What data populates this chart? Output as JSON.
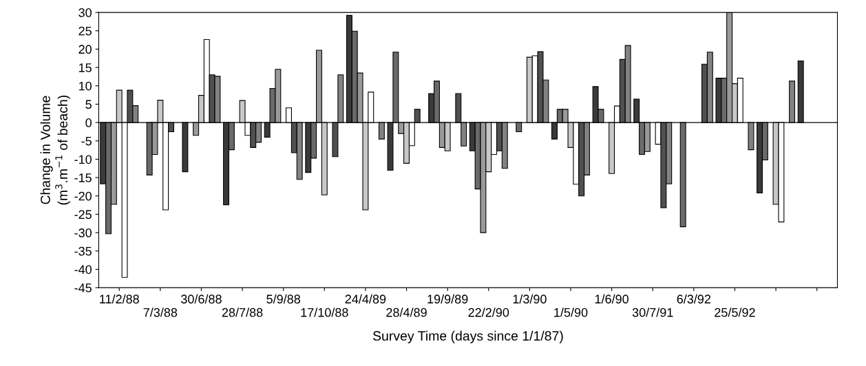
{
  "chart_data": {
    "type": "bar",
    "xlabel": "Survey Time (days since 1/1/87)",
    "ylabel": "Change in Volume\n(m$^{3}$.m$^{−1}$ of beach)",
    "categories": [
      "11/2/88",
      "7/3/88",
      "30/6/88",
      "28/7/88",
      "5/9/88",
      "17/10/88",
      "24/4/89",
      "28/4/89",
      "19/9/89",
      "22/2/90",
      "1/3/90",
      "1/5/90",
      "1/6/90",
      "30/7/91",
      "6/3/92",
      "25/5/92",
      null,
      null
    ],
    "series": [
      {
        "color": "#3a3a3a",
        "values": [
          -16.7,
          null,
          -13.4,
          -22.4,
          -4.0,
          -13.6,
          29.2,
          -13.0,
          7.9,
          -7.7,
          null,
          -4.5,
          9.8,
          6.4,
          null,
          12.1,
          -19.2,
          16.8
        ]
      },
      {
        "color": "#6a6a6a",
        "values": [
          -30.3,
          -14.3,
          null,
          -7.4,
          9.3,
          -9.7,
          24.9,
          19.2,
          11.3,
          -18.1,
          -2.5,
          3.6,
          3.6,
          -8.7,
          -28.4,
          12.1,
          -10.2,
          null
        ]
      },
      {
        "color": "#9a9a9a",
        "values": [
          -22.3,
          -8.7,
          -3.5,
          null,
          14.5,
          19.7,
          13.5,
          -3.0,
          -6.8,
          -30.0,
          null,
          3.6,
          null,
          -7.9,
          null,
          30,
          null,
          null
        ]
      },
      {
        "color": "#c8c8c8",
        "values": [
          8.8,
          6.1,
          7.4,
          6.0,
          null,
          -19.7,
          -23.8,
          -11.1,
          -7.7,
          -13.4,
          17.8,
          -6.8,
          -13.9,
          null,
          null,
          10.6,
          -22.3,
          null
        ]
      },
      {
        "color": "#ffffff",
        "values": [
          -42.2,
          -23.8,
          22.6,
          -3.5,
          4.0,
          null,
          8.3,
          -6.3,
          null,
          -8.7,
          18.2,
          -16.8,
          4.5,
          -5.9,
          null,
          12.1,
          -27.1,
          null
        ]
      },
      {
        "color": "#505050",
        "values": [
          8.8,
          -2.5,
          13.0,
          -6.8,
          -8.2,
          -9.3,
          null,
          3.6,
          7.9,
          -7.7,
          19.3,
          -20.0,
          17.2,
          -23.2,
          15.9,
          null,
          null,
          null
        ]
      },
      {
        "color": "#828282",
        "values": [
          4.6,
          null,
          12.6,
          -5.4,
          -15.5,
          13.0,
          -4.5,
          null,
          -6.4,
          -12.5,
          11.6,
          -14.3,
          21.0,
          -16.7,
          19.2,
          -7.4,
          11.3,
          null
        ]
      }
    ],
    "ylim": [
      -45,
      30
    ],
    "yticks": [
      -45,
      -40,
      -35,
      -30,
      -25,
      -20,
      -15,
      -10,
      -5,
      0,
      5,
      10,
      15,
      20,
      25,
      30
    ],
    "ref_lines": [
      {
        "axis": "y",
        "value": 0,
        "color": "#000000"
      }
    ],
    "grid": false,
    "legend": false
  }
}
